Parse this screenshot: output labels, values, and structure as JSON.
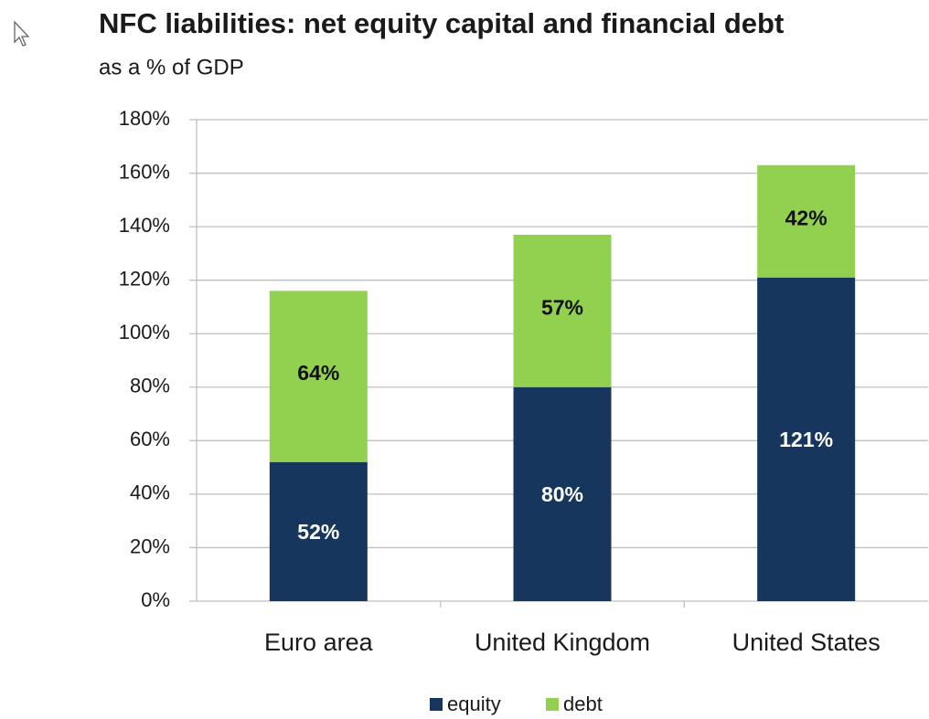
{
  "chart_data": {
    "type": "stacked_bar",
    "title": "NFC liabilities: net equity capital and financial debt",
    "subtitle": "as a % of GDP",
    "categories": [
      "Euro area",
      "United Kingdom",
      "United States"
    ],
    "series": [
      {
        "name": "equity",
        "color": "#17365d",
        "values": [
          52,
          80,
          121
        ],
        "value_labels": [
          "52%",
          "80%",
          "121%"
        ]
      },
      {
        "name": "debt",
        "color": "#92d050",
        "values": [
          64,
          57,
          42
        ],
        "value_labels": [
          "64%",
          "57%",
          "42%"
        ]
      }
    ],
    "ylim": [
      0,
      180
    ],
    "yticks": [
      {
        "value": 0,
        "label": "0%"
      },
      {
        "value": 20,
        "label": "20%"
      },
      {
        "value": 40,
        "label": "40%"
      },
      {
        "value": 60,
        "label": "60%"
      },
      {
        "value": 80,
        "label": "80%"
      },
      {
        "value": 100,
        "label": "100%"
      },
      {
        "value": 120,
        "label": "120%"
      },
      {
        "value": 140,
        "label": "140%"
      },
      {
        "value": 160,
        "label": "160%"
      },
      {
        "value": 180,
        "label": "180%"
      }
    ],
    "grid": true,
    "legend": "bottom"
  }
}
